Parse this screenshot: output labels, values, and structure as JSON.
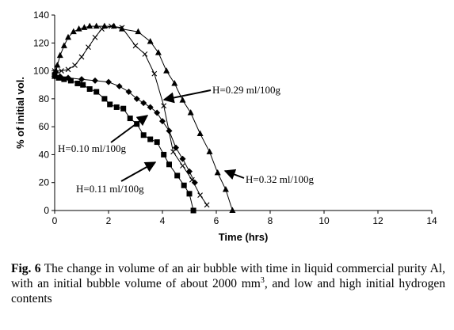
{
  "chart_data": {
    "type": "line",
    "xlabel": "Time (hrs)",
    "ylabel": "% of initial vol.",
    "xlim": [
      0,
      14
    ],
    "ylim": [
      0,
      140
    ],
    "xticks": [
      "0",
      "2",
      "4",
      "6",
      "8",
      "10",
      "12",
      "14"
    ],
    "yticks": [
      "0",
      "20",
      "40",
      "60",
      "80",
      "100",
      "120",
      "140"
    ],
    "grid": false,
    "series": [
      {
        "name": "H=0.11 ml/100g",
        "marker": "square",
        "x": [
          0,
          0.15,
          0.35,
          0.6,
          0.85,
          1.05,
          1.3,
          1.55,
          1.85,
          2.05,
          2.3,
          2.55,
          2.8,
          3.05,
          3.3,
          3.55,
          3.8,
          4.05,
          4.25,
          4.55,
          4.8,
          5.0,
          5.15
        ],
        "y": [
          97,
          95,
          94,
          93,
          91,
          90,
          87,
          85,
          80,
          76,
          74,
          73,
          66,
          62,
          54,
          51,
          49,
          40,
          33,
          25,
          18,
          12,
          0
        ]
      },
      {
        "name": "H=0.10 ml/100g",
        "marker": "diamond",
        "x": [
          0,
          0.2,
          0.5,
          1.0,
          1.5,
          2.0,
          2.4,
          2.75,
          3.05,
          3.3,
          3.55,
          3.8,
          4.0,
          4.25,
          4.5,
          4.75,
          5.0,
          5.2
        ],
        "y": [
          96,
          96,
          95,
          94,
          93,
          92,
          89,
          85,
          80,
          77,
          74,
          70,
          64,
          57,
          45,
          37,
          28,
          20
        ]
      },
      {
        "name": "H=0.29 ml/100g",
        "marker": "x",
        "x": [
          0,
          0.25,
          0.5,
          0.75,
          1.0,
          1.25,
          1.5,
          1.75,
          2.1,
          2.5,
          3.0,
          3.35,
          3.7,
          4.05,
          4.4,
          4.75,
          5.1,
          5.4,
          5.65
        ],
        "y": [
          100,
          100,
          101,
          104,
          110,
          117,
          124,
          130,
          132,
          131,
          118,
          112,
          98,
          75,
          42,
          32,
          22,
          11,
          4
        ]
      },
      {
        "name": "H=0.32 ml/100g",
        "marker": "triangle",
        "x": [
          0,
          0.05,
          0.1,
          0.2,
          0.35,
          0.5,
          0.7,
          0.9,
          1.1,
          1.3,
          1.55,
          1.85,
          2.2,
          2.5,
          3.1,
          3.55,
          3.85,
          4.15,
          4.45,
          4.75,
          5.05,
          5.4,
          5.75,
          6.05,
          6.35,
          6.6
        ],
        "y": [
          96,
          100,
          104,
          111,
          118,
          124,
          128,
          130,
          131,
          132,
          132,
          132,
          132,
          130,
          128,
          121,
          113,
          100,
          91,
          79,
          70,
          55,
          42,
          27,
          15,
          0
        ]
      }
    ],
    "annotations": [
      {
        "text": "H=0.29 ml/100g",
        "arrow_to_series": "H=0.29 ml/100g"
      },
      {
        "text": "H=0.10 ml/100g",
        "arrow_to_series": "H=0.10 ml/100g"
      },
      {
        "text": "H=0.11 ml/100g",
        "arrow_to_series": "H=0.11 ml/100g"
      },
      {
        "text": "H=0.32 ml/100g",
        "arrow_to_series": "H=0.32 ml/100g"
      }
    ]
  },
  "caption": {
    "label": "Fig. 6",
    "text_before_sup": "The change in volume of an air bubble with time in liquid commercial purity Al, with an initial bubble volume of about 2000 mm",
    "sup": "3",
    "text_after_sup": ", and low and high initial hydrogen contents"
  }
}
